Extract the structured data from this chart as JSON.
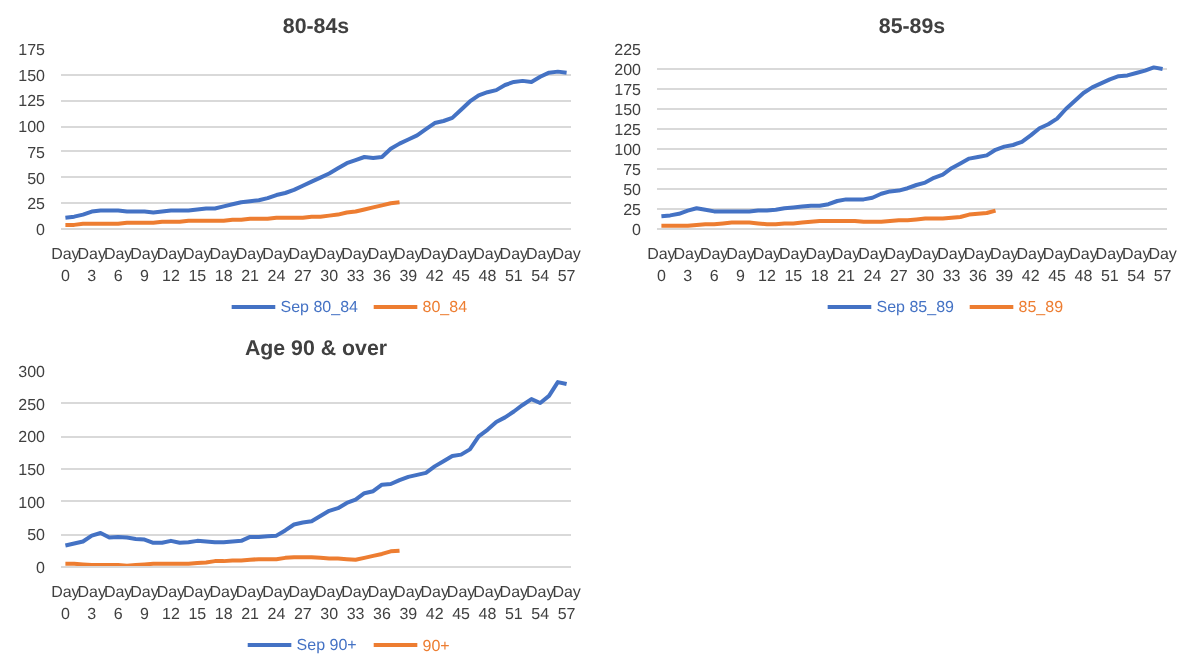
{
  "chart_data": [
    {
      "type": "line",
      "title": "80-84s",
      "categories": [
        "Day 0",
        null,
        null,
        "Day 3",
        null,
        null,
        "Day 6",
        null,
        null,
        "Day 9",
        null,
        null,
        "Day 12",
        null,
        null,
        "Day 15",
        null,
        null,
        "Day 18",
        null,
        null,
        "Day 21",
        null,
        null,
        "Day 24",
        null,
        null,
        "Day 27",
        null,
        null,
        "Day 30",
        null,
        null,
        "Day 33",
        null,
        null,
        "Day 36",
        null,
        null,
        "Day 39",
        null,
        null,
        "Day 42",
        null,
        null,
        "Day 45",
        null,
        null,
        "Day 48",
        null,
        null,
        "Day 51",
        null,
        null,
        "Day 54",
        null,
        null,
        "Day 57"
      ],
      "ylim": [
        0,
        175
      ],
      "yticks": [
        0,
        25,
        50,
        75,
        100,
        125,
        150,
        175
      ],
      "grid": "y",
      "legend": "bottom",
      "series": [
        {
          "name": "Sep 80_84",
          "color": "#4472c4",
          "values": [
            11,
            12,
            14,
            17,
            18,
            18,
            18,
            17,
            17,
            17,
            16,
            17,
            18,
            18,
            18,
            19,
            20,
            20,
            22,
            24,
            26,
            27,
            28,
            30,
            33,
            35,
            38,
            42,
            46,
            50,
            54,
            59,
            64,
            67,
            70,
            69,
            70,
            78,
            83,
            87,
            91,
            97,
            103,
            105,
            108,
            116,
            124,
            130,
            133,
            135,
            140,
            143,
            144,
            143,
            148,
            152,
            153,
            152
          ]
        },
        {
          "name": "80_84",
          "color": "#ed7d31",
          "values": [
            4,
            4,
            5,
            5,
            5,
            5,
            5,
            6,
            6,
            6,
            6,
            7,
            7,
            7,
            8,
            8,
            8,
            8,
            8,
            9,
            9,
            10,
            10,
            10,
            11,
            11,
            11,
            11,
            12,
            12,
            13,
            14,
            16,
            17,
            19,
            21,
            23,
            25,
            26,
            null,
            null,
            null,
            null,
            null,
            null,
            null,
            null,
            null,
            null,
            null,
            null,
            null,
            null,
            null,
            null,
            null,
            null,
            null
          ]
        }
      ]
    },
    {
      "type": "line",
      "title": "85-89s",
      "categories": [
        "Day 0",
        null,
        null,
        "Day 3",
        null,
        null,
        "Day 6",
        null,
        null,
        "Day 9",
        null,
        null,
        "Day 12",
        null,
        null,
        "Day 15",
        null,
        null,
        "Day 18",
        null,
        null,
        "Day 21",
        null,
        null,
        "Day 24",
        null,
        null,
        "Day 27",
        null,
        null,
        "Day 30",
        null,
        null,
        "Day 33",
        null,
        null,
        "Day 36",
        null,
        null,
        "Day 39",
        null,
        null,
        "Day 42",
        null,
        null,
        "Day 45",
        null,
        null,
        "Day 48",
        null,
        null,
        "Day 51",
        null,
        null,
        "Day 54",
        null,
        null,
        "Day 57"
      ],
      "ylim": [
        0,
        225
      ],
      "yticks": [
        0,
        25,
        50,
        75,
        100,
        125,
        150,
        175,
        200,
        225
      ],
      "grid": "y",
      "legend": "bottom",
      "series": [
        {
          "name": "Sep 85_89",
          "color": "#4472c4",
          "values": [
            16,
            17,
            19,
            23,
            26,
            24,
            22,
            22,
            22,
            22,
            22,
            23,
            23,
            24,
            26,
            27,
            28,
            29,
            29,
            31,
            35,
            37,
            37,
            37,
            39,
            44,
            47,
            48,
            51,
            55,
            58,
            64,
            68,
            76,
            82,
            88,
            90,
            92,
            99,
            103,
            105,
            109,
            117,
            126,
            131,
            138,
            150,
            160,
            170,
            177,
            182,
            187,
            191,
            192,
            195,
            198,
            202,
            200
          ]
        },
        {
          "name": "85_89",
          "color": "#ed7d31",
          "values": [
            4,
            4,
            4,
            4,
            5,
            6,
            6,
            7,
            8,
            8,
            8,
            7,
            6,
            6,
            7,
            7,
            8,
            9,
            10,
            10,
            10,
            10,
            10,
            9,
            9,
            9,
            10,
            11,
            11,
            12,
            13,
            13,
            13,
            14,
            15,
            18,
            19,
            20,
            23,
            null,
            null,
            null,
            null,
            null,
            null,
            null,
            null,
            null,
            null,
            null,
            null,
            null,
            null,
            null,
            null,
            null,
            null,
            null
          ]
        }
      ]
    },
    {
      "type": "line",
      "title": "Age 90 & over",
      "categories": [
        "Day 0",
        null,
        null,
        "Day 3",
        null,
        null,
        "Day 6",
        null,
        null,
        "Day 9",
        null,
        null,
        "Day 12",
        null,
        null,
        "Day 15",
        null,
        null,
        "Day 18",
        null,
        null,
        "Day 21",
        null,
        null,
        "Day 24",
        null,
        null,
        "Day 27",
        null,
        null,
        "Day 30",
        null,
        null,
        "Day 33",
        null,
        null,
        "Day 36",
        null,
        null,
        "Day 39",
        null,
        null,
        "Day 42",
        null,
        null,
        "Day 45",
        null,
        null,
        "Day 48",
        null,
        null,
        "Day 51",
        null,
        null,
        "Day 54",
        null,
        null,
        "Day 57"
      ],
      "ylim": [
        0,
        300
      ],
      "yticks": [
        0,
        50,
        100,
        150,
        200,
        250,
        300
      ],
      "grid": "y",
      "legend": "bottom",
      "series": [
        {
          "name": "Sep 90+",
          "color": "#4472c4",
          "values": [
            33,
            36,
            39,
            48,
            52,
            45,
            46,
            45,
            43,
            42,
            37,
            37,
            40,
            37,
            38,
            40,
            39,
            38,
            38,
            39,
            40,
            46,
            46,
            47,
            48,
            56,
            65,
            68,
            70,
            78,
            86,
            90,
            98,
            103,
            113,
            116,
            126,
            127,
            133,
            138,
            141,
            144,
            154,
            162,
            170,
            172,
            180,
            200,
            210,
            222,
            229,
            238,
            248,
            257,
            251,
            262,
            283,
            280
          ]
        },
        {
          "name": "90+",
          "color": "#ed7d31",
          "values": [
            5,
            5,
            4,
            3,
            3,
            3,
            3,
            2,
            3,
            4,
            5,
            5,
            5,
            5,
            5,
            6,
            7,
            9,
            9,
            10,
            10,
            11,
            12,
            12,
            12,
            14,
            15,
            15,
            15,
            14,
            13,
            13,
            12,
            11,
            14,
            17,
            20,
            24,
            25,
            null,
            null,
            null,
            null,
            null,
            null,
            null,
            null,
            null,
            null,
            null,
            null,
            null,
            null,
            null,
            null,
            null,
            null,
            null
          ]
        }
      ]
    }
  ]
}
